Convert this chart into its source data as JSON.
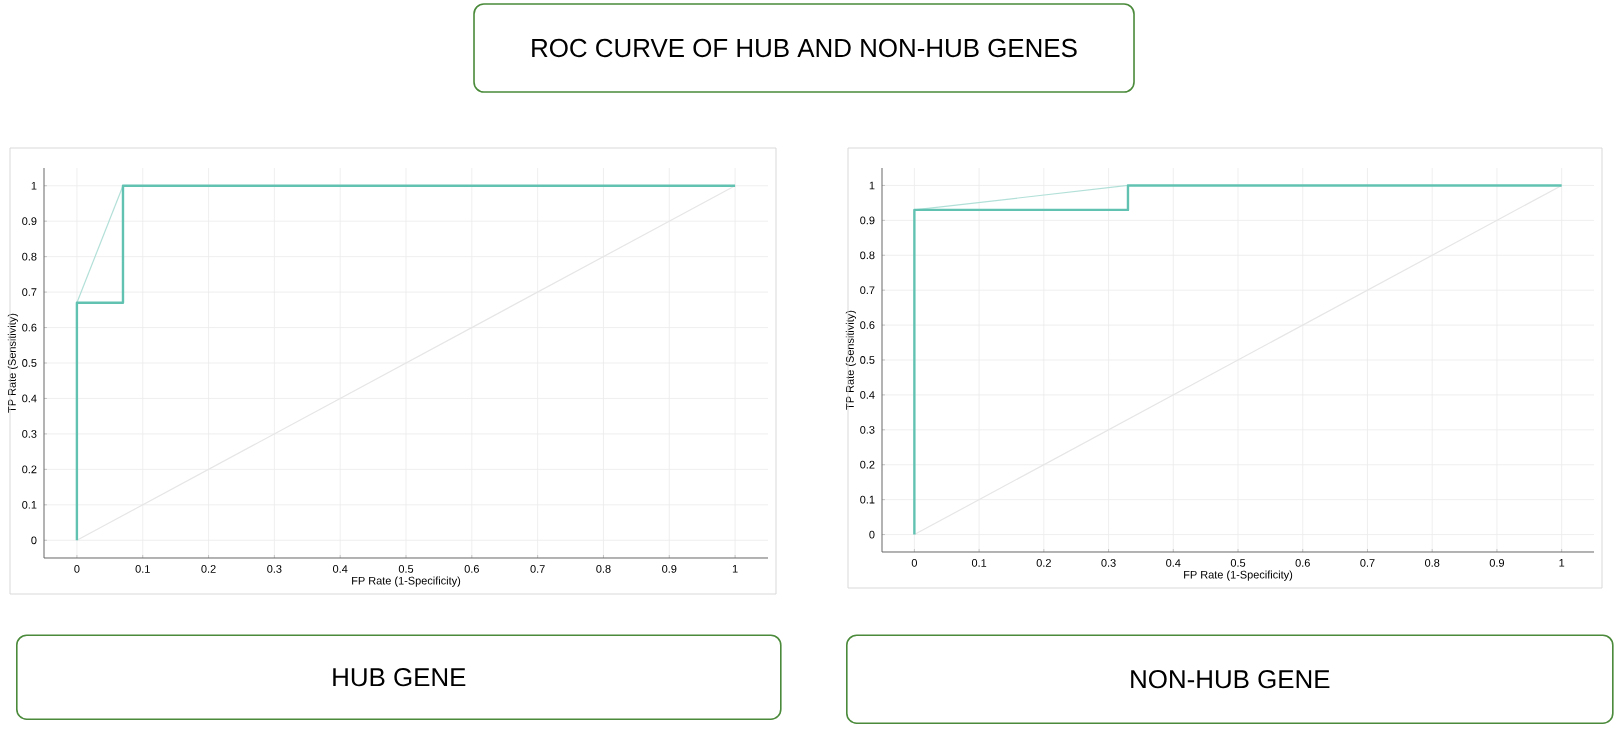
{
  "chart_data": [
    {
      "type": "line",
      "title": "ROC CURVE OF HUB AND NON-HUB GENES",
      "subtitle": "HUB GENE",
      "xlabel": "FP Rate (1-Specificity)",
      "ylabel": "TP Rate (Sensitivity)",
      "xlim": [
        -0.05,
        1.05
      ],
      "ylim": [
        -0.05,
        1.05
      ],
      "xticks": [
        0,
        0.1,
        0.2,
        0.3,
        0.4,
        0.5,
        0.6,
        0.7,
        0.8,
        0.9,
        1
      ],
      "yticks": [
        0,
        0.1,
        0.2,
        0.3,
        0.4,
        0.5,
        0.6,
        0.7,
        0.8,
        0.9,
        1
      ],
      "grid": true,
      "series": [
        {
          "color": "#e6e6e6",
          "x": [
            0,
            1
          ],
          "values": [
            0,
            1
          ]
        },
        {
          "color": "#b2e0d8",
          "x": [
            0,
            0.07
          ],
          "values": [
            0.67,
            1
          ]
        },
        {
          "color": "#62c2b2",
          "x": [
            0,
            0,
            0.07,
            0.07,
            1
          ],
          "values": [
            0,
            0.67,
            0.67,
            1,
            1
          ]
        }
      ]
    },
    {
      "type": "line",
      "subtitle": "NON-HUB GENE",
      "xlabel": "FP Rate (1-Specificity)",
      "ylabel": "TP Rate (Sensitivity)",
      "xlim": [
        -0.05,
        1.05
      ],
      "ylim": [
        -0.05,
        1.05
      ],
      "xticks": [
        0,
        0.1,
        0.2,
        0.3,
        0.4,
        0.5,
        0.6,
        0.7,
        0.8,
        0.9,
        1
      ],
      "yticks": [
        0,
        0.1,
        0.2,
        0.3,
        0.4,
        0.5,
        0.6,
        0.7,
        0.8,
        0.9,
        1
      ],
      "grid": true,
      "series": [
        {
          "color": "#e6e6e6",
          "x": [
            0,
            1
          ],
          "values": [
            0,
            1
          ]
        },
        {
          "color": "#b2e0d8",
          "x": [
            0,
            0.33
          ],
          "values": [
            0.93,
            1
          ]
        },
        {
          "color": "#62c2b2",
          "x": [
            0,
            0,
            0.33,
            0.33,
            1
          ],
          "values": [
            0,
            0.93,
            0.93,
            1,
            1
          ]
        }
      ]
    }
  ]
}
